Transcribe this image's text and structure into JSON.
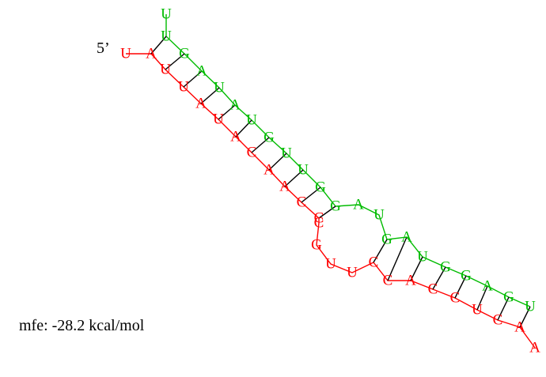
{
  "labels": {
    "five_prime": "5’",
    "mfe": "mfe: -28.2 kcal/mol"
  },
  "colors": {
    "strand1": "#ff0000",
    "strand2": "#00bb00",
    "pair": "#000000"
  },
  "strand1": [
    "U",
    "A",
    "U",
    "U",
    "A",
    "U",
    "A",
    "C",
    "A",
    "A",
    "C",
    "C",
    "C",
    "G",
    "U",
    "U",
    "C",
    "C",
    "A",
    "C",
    "C",
    "U",
    "C",
    "A",
    "A"
  ],
  "strand2": [
    "U",
    "U",
    "G",
    "A",
    "U",
    "A",
    "U",
    "G",
    "U",
    "U",
    "G",
    "G",
    "A",
    "U",
    "G",
    "A",
    "U",
    "G",
    "G",
    "A",
    "G",
    "U"
  ]
}
